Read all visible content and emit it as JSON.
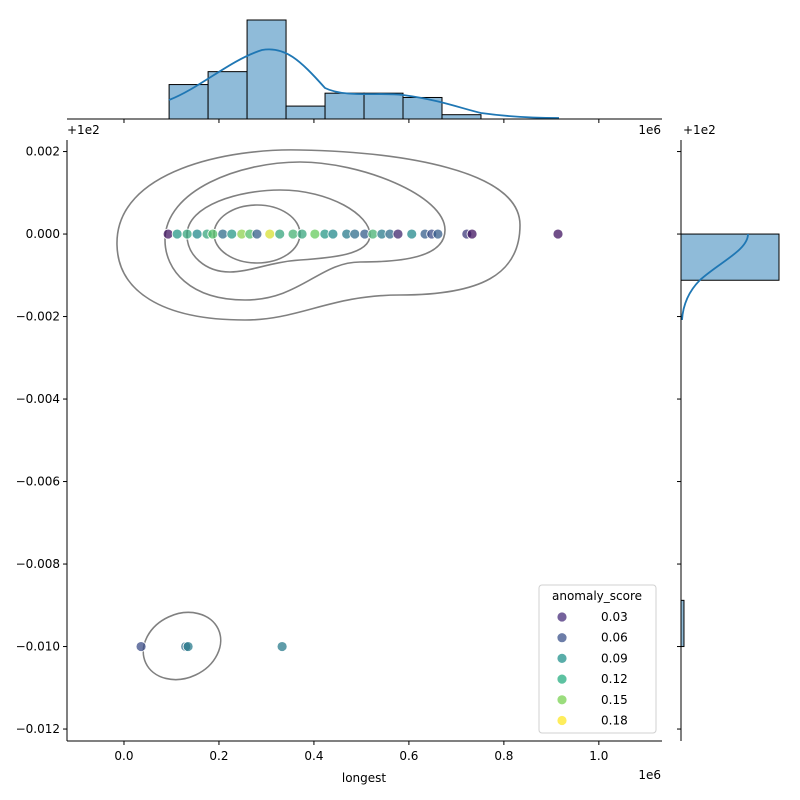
{
  "chart_data": {
    "type": "scatter",
    "subtype": "jointplot",
    "xlabel": "longest",
    "ylabel": "",
    "x_offset_text": "1e6",
    "y_offset_text": "+1e2",
    "top_marginal_offset_text": "1e6",
    "right_marginal_offset_text": "+1e2",
    "xlim": [
      -0.12,
      1.133
    ],
    "ylim": [
      -0.01229,
      0.00228
    ],
    "x_ticks": [
      0.0,
      0.2,
      0.4,
      0.6,
      0.8,
      1.0
    ],
    "x_tick_labels": [
      "0.0",
      "0.2",
      "0.4",
      "0.6",
      "0.8",
      "1.0"
    ],
    "y_ticks": [
      0.002,
      0.0,
      -0.002,
      -0.004,
      -0.006,
      -0.008,
      -0.01,
      -0.012
    ],
    "y_tick_labels": [
      "0.002",
      "0.000",
      "−0.002",
      "−0.004",
      "−0.006",
      "−0.008",
      "−0.010",
      "−0.012"
    ],
    "grid": false,
    "points": [
      {
        "x": 0.093,
        "y": 0,
        "score": 0.03
      },
      {
        "x": 0.112,
        "y": 0,
        "score": 0.11
      },
      {
        "x": 0.133,
        "y": 0,
        "score": 0.12
      },
      {
        "x": 0.154,
        "y": 0,
        "score": 0.1
      },
      {
        "x": 0.175,
        "y": 0,
        "score": 0.12
      },
      {
        "x": 0.187,
        "y": 0,
        "score": 0.14
      },
      {
        "x": 0.208,
        "y": 0,
        "score": 0.08
      },
      {
        "x": 0.227,
        "y": 0,
        "score": 0.11
      },
      {
        "x": 0.248,
        "y": 0,
        "score": 0.16
      },
      {
        "x": 0.265,
        "y": 0,
        "score": 0.14
      },
      {
        "x": 0.28,
        "y": 0,
        "score": 0.07
      },
      {
        "x": 0.307,
        "y": 0,
        "score": 0.18
      },
      {
        "x": 0.328,
        "y": 0,
        "score": 0.12
      },
      {
        "x": 0.356,
        "y": 0,
        "score": 0.13
      },
      {
        "x": 0.375,
        "y": 0,
        "score": 0.12
      },
      {
        "x": 0.402,
        "y": 0,
        "score": 0.15
      },
      {
        "x": 0.423,
        "y": 0,
        "score": 0.11
      },
      {
        "x": 0.44,
        "y": 0,
        "score": 0.1
      },
      {
        "x": 0.469,
        "y": 0,
        "score": 0.09
      },
      {
        "x": 0.486,
        "y": 0,
        "score": 0.08
      },
      {
        "x": 0.507,
        "y": 0,
        "score": 0.07
      },
      {
        "x": 0.524,
        "y": 0,
        "score": 0.13
      },
      {
        "x": 0.543,
        "y": 0,
        "score": 0.09
      },
      {
        "x": 0.56,
        "y": 0,
        "score": 0.08
      },
      {
        "x": 0.577,
        "y": 0,
        "score": 0.04
      },
      {
        "x": 0.606,
        "y": 0,
        "score": 0.1
      },
      {
        "x": 0.634,
        "y": 0,
        "score": 0.07
      },
      {
        "x": 0.648,
        "y": 0,
        "score": 0.06
      },
      {
        "x": 0.661,
        "y": 0,
        "score": 0.07
      },
      {
        "x": 0.722,
        "y": 0,
        "score": 0.05
      },
      {
        "x": 0.733,
        "y": 0,
        "score": 0.03
      },
      {
        "x": 0.914,
        "y": 0,
        "score": 0.03
      },
      {
        "x": 0.036,
        "y": -0.01,
        "score": 0.06
      },
      {
        "x": 0.13,
        "y": -0.01,
        "score": 0.08
      },
      {
        "x": 0.135,
        "y": -0.01,
        "score": 0.09
      },
      {
        "x": 0.333,
        "y": -0.01,
        "score": 0.09
      }
    ],
    "top_histogram": {
      "bin_start": 0.095,
      "bin_width": 0.0821,
      "counts": [
        8,
        11,
        23,
        3,
        6,
        6,
        5,
        1,
        0,
        0
      ],
      "color": "#8fbbd9",
      "kde_color": "#1f77b4"
    },
    "right_histogram": {
      "bins": [
        [
          -0.00112,
          0.0
        ],
        [
          -0.01,
          -0.00888
        ]
      ],
      "counts": [
        33,
        1
      ],
      "color": "#8fbbd9",
      "kde_color": "#1f77b4"
    },
    "legend": {
      "title": "anomaly_score",
      "placement": "lower-right",
      "entries": [
        {
          "label": "0.03",
          "color": "#472d7b"
        },
        {
          "label": "0.06",
          "color": "#3b528b"
        },
        {
          "label": "0.09",
          "color": "#21918c"
        },
        {
          "label": "0.12",
          "color": "#27ad81"
        },
        {
          "label": "0.15",
          "color": "#7ad151"
        },
        {
          "label": "0.18",
          "color": "#fde725"
        }
      ]
    },
    "contour_color": "#808080"
  }
}
